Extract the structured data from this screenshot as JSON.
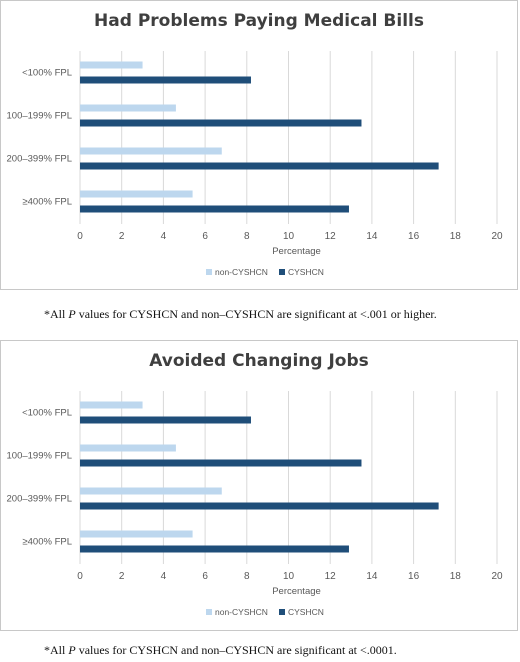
{
  "colors": {
    "non_cyshcn": "#bdd7ee",
    "cyshcn": "#1f4e79",
    "grid": "#d9d9d9",
    "text": "#595959"
  },
  "chart_data": [
    {
      "type": "bar",
      "orientation": "horizontal",
      "title": "Had Problems Paying Medical Bills",
      "xlabel": "Percentage",
      "categories": [
        "<100% FPL",
        "100–199% FPL",
        "200–399% FPL",
        "≥400% FPL"
      ],
      "series": [
        {
          "name": "non-CYSHCN",
          "values": [
            3.0,
            4.6,
            6.8,
            5.4
          ]
        },
        {
          "name": "CYSHCN",
          "values": [
            8.2,
            13.5,
            17.2,
            12.9
          ]
        }
      ],
      "xlim": [
        0,
        20
      ],
      "xticks": [
        0,
        2,
        4,
        6,
        8,
        10,
        12,
        14,
        16,
        18,
        20
      ],
      "grid": "vertical",
      "legend": "bottom",
      "footnote": {
        "prefix": "*All ",
        "italic": "P",
        "suffix": " values for CYSHCN and non–CYSHCN are significant at <.001 or higher."
      }
    },
    {
      "type": "bar",
      "orientation": "horizontal",
      "title": "Avoided Changing Jobs",
      "xlabel": "Percentage",
      "categories": [
        "<100% FPL",
        "100–199% FPL",
        "200–399% FPL",
        "≥400% FPL"
      ],
      "series": [
        {
          "name": "non-CYSHCN",
          "values": [
            3.0,
            4.6,
            6.8,
            5.4
          ]
        },
        {
          "name": "CYSHCN",
          "values": [
            8.2,
            13.5,
            17.2,
            12.9
          ]
        }
      ],
      "xlim": [
        0,
        20
      ],
      "xticks": [
        0,
        2,
        4,
        6,
        8,
        10,
        12,
        14,
        16,
        18,
        20
      ],
      "grid": "vertical",
      "legend": "bottom",
      "footnote": {
        "prefix": "*All ",
        "italic": "P",
        "suffix": " values for CYSHCN and non–CYSHCN are significant at <.0001."
      }
    }
  ]
}
